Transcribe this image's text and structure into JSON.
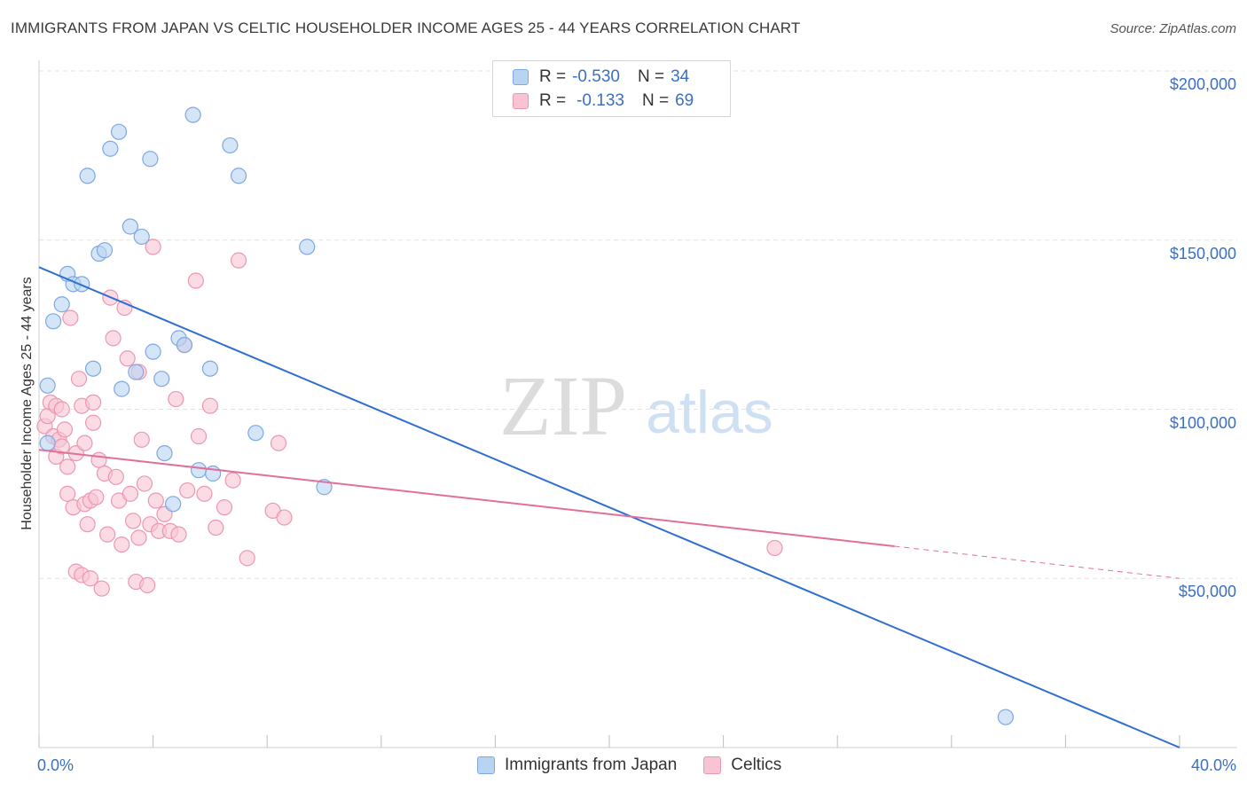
{
  "title": "IMMIGRANTS FROM JAPAN VS CELTIC HOUSEHOLDER INCOME AGES 25 - 44 YEARS CORRELATION CHART",
  "source": "Source: ZipAtlas.com",
  "watermark": {
    "zip": "ZIP",
    "atlas": "atlas"
  },
  "colors": {
    "blue_fill": "#b9d3f3",
    "blue_stroke": "#7ea8e0",
    "blue_line": "#2f6fd1",
    "pink_fill": "#f8c4d4",
    "pink_stroke": "#ec97b2",
    "pink_line": "#e0709a",
    "grid": "#e2e2e2",
    "tick_text": "#3b6fc4"
  },
  "legend": {
    "rows": [
      {
        "r_label": "R =",
        "r_value": "-0.530",
        "n_label": "N =",
        "n_value": "34"
      },
      {
        "r_label": "R =",
        "r_value": "-0.133",
        "n_label": "N =",
        "n_value": "69"
      }
    ]
  },
  "bottom_legend": [
    "Immigrants from Japan",
    "Celtics"
  ],
  "chart_data": {
    "type": "scatter",
    "title": "IMMIGRANTS FROM JAPAN VS CELTIC HOUSEHOLDER INCOME AGES 25 - 44 YEARS CORRELATION CHART",
    "xlabel": "",
    "ylabel": "Householder Income Ages 25 - 44 years",
    "xlim": [
      0,
      40
    ],
    "ylim": [
      0,
      210000
    ],
    "x_tick_labels": [
      "0.0%",
      "40.0%"
    ],
    "y_ticks": [
      50000,
      100000,
      150000,
      200000
    ],
    "y_tick_labels": [
      "$50,000",
      "$100,000",
      "$150,000",
      "$200,000"
    ],
    "grid": true,
    "legend_position": "top-center",
    "series": [
      {
        "name": "Immigrants from Japan",
        "r": -0.53,
        "n": 34,
        "trend": {
          "x": [
            0,
            40
          ],
          "y": [
            142000,
            0
          ],
          "dashed_from_x": null
        },
        "points": [
          [
            0.3,
            90000
          ],
          [
            0.3,
            107000
          ],
          [
            0.5,
            126000
          ],
          [
            0.8,
            131000
          ],
          [
            1.0,
            140000
          ],
          [
            1.2,
            137000
          ],
          [
            1.5,
            137000
          ],
          [
            1.7,
            169000
          ],
          [
            1.9,
            112000
          ],
          [
            2.1,
            146000
          ],
          [
            2.3,
            147000
          ],
          [
            2.5,
            177000
          ],
          [
            2.8,
            182000
          ],
          [
            2.9,
            106000
          ],
          [
            3.2,
            154000
          ],
          [
            3.4,
            111000
          ],
          [
            3.6,
            151000
          ],
          [
            3.9,
            174000
          ],
          [
            4.0,
            117000
          ],
          [
            4.3,
            109000
          ],
          [
            4.4,
            87000
          ],
          [
            4.7,
            72000
          ],
          [
            4.9,
            121000
          ],
          [
            5.1,
            119000
          ],
          [
            5.4,
            187000
          ],
          [
            5.6,
            82000
          ],
          [
            6.0,
            112000
          ],
          [
            6.1,
            81000
          ],
          [
            6.7,
            178000
          ],
          [
            7.0,
            169000
          ],
          [
            7.6,
            93000
          ],
          [
            9.4,
            148000
          ],
          [
            10.0,
            77000
          ],
          [
            33.9,
            9000
          ]
        ]
      },
      {
        "name": "Celtics",
        "r": -0.133,
        "n": 69,
        "trend": {
          "x": [
            0,
            40
          ],
          "y": [
            88000,
            50000
          ],
          "dashed_from_x": 30
        },
        "points": [
          [
            0.2,
            95000
          ],
          [
            0.3,
            98000
          ],
          [
            0.4,
            102000
          ],
          [
            0.5,
            92000
          ],
          [
            0.6,
            101000
          ],
          [
            0.6,
            86000
          ],
          [
            0.7,
            91000
          ],
          [
            0.8,
            89000
          ],
          [
            0.8,
            100000
          ],
          [
            0.9,
            94000
          ],
          [
            1.0,
            83000
          ],
          [
            1.0,
            75000
          ],
          [
            1.1,
            127000
          ],
          [
            1.2,
            71000
          ],
          [
            1.3,
            87000
          ],
          [
            1.3,
            52000
          ],
          [
            1.4,
            109000
          ],
          [
            1.5,
            101000
          ],
          [
            1.5,
            51000
          ],
          [
            1.6,
            72000
          ],
          [
            1.6,
            90000
          ],
          [
            1.7,
            66000
          ],
          [
            1.8,
            73000
          ],
          [
            1.8,
            50000
          ],
          [
            1.9,
            102000
          ],
          [
            1.9,
            96000
          ],
          [
            2.0,
            74000
          ],
          [
            2.1,
            85000
          ],
          [
            2.2,
            47000
          ],
          [
            2.3,
            81000
          ],
          [
            2.4,
            63000
          ],
          [
            2.5,
            133000
          ],
          [
            2.6,
            121000
          ],
          [
            2.7,
            80000
          ],
          [
            2.8,
            73000
          ],
          [
            2.9,
            60000
          ],
          [
            3.0,
            130000
          ],
          [
            3.1,
            115000
          ],
          [
            3.2,
            75000
          ],
          [
            3.3,
            67000
          ],
          [
            3.4,
            49000
          ],
          [
            3.5,
            62000
          ],
          [
            3.5,
            111000
          ],
          [
            3.6,
            91000
          ],
          [
            3.7,
            78000
          ],
          [
            3.8,
            48000
          ],
          [
            3.9,
            66000
          ],
          [
            4.0,
            148000
          ],
          [
            4.1,
            73000
          ],
          [
            4.2,
            64000
          ],
          [
            4.4,
            69000
          ],
          [
            4.6,
            64000
          ],
          [
            4.8,
            103000
          ],
          [
            4.9,
            63000
          ],
          [
            5.1,
            119000
          ],
          [
            5.2,
            76000
          ],
          [
            5.5,
            138000
          ],
          [
            5.6,
            92000
          ],
          [
            5.8,
            75000
          ],
          [
            6.0,
            101000
          ],
          [
            6.2,
            65000
          ],
          [
            6.5,
            71000
          ],
          [
            6.8,
            79000
          ],
          [
            7.0,
            144000
          ],
          [
            7.3,
            56000
          ],
          [
            8.2,
            70000
          ],
          [
            8.4,
            90000
          ],
          [
            8.6,
            68000
          ],
          [
            25.8,
            59000
          ]
        ]
      }
    ]
  }
}
